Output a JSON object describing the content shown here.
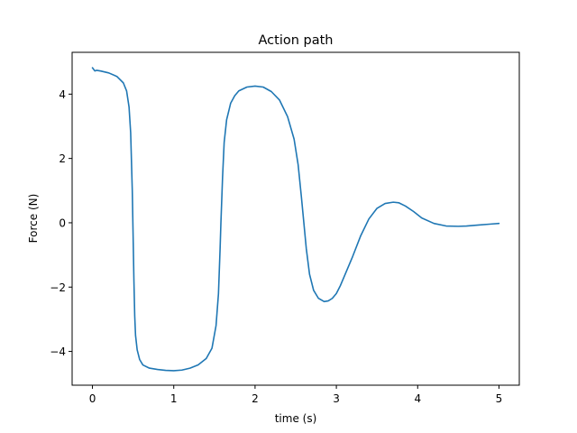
{
  "chart_data": {
    "type": "line",
    "title": "Action path",
    "xlabel": "time (s)",
    "ylabel": "Force (N)",
    "xlim": [
      -0.25,
      5.25
    ],
    "ylim": [
      -5.05,
      5.3
    ],
    "x_ticks": [
      0,
      1,
      2,
      3,
      4,
      5
    ],
    "y_ticks": [
      -4,
      -2,
      0,
      2,
      4
    ],
    "x_tick_labels": [
      "0",
      "1",
      "2",
      "3",
      "4",
      "5"
    ],
    "y_tick_labels": [
      "−4",
      "−2",
      "0",
      "2",
      "4"
    ],
    "grid": false,
    "series": [
      {
        "color": "#1f77b4",
        "x": [
          0.0,
          0.03,
          0.05,
          0.1,
          0.2,
          0.3,
          0.38,
          0.42,
          0.45,
          0.47,
          0.49,
          0.5,
          0.51,
          0.52,
          0.53,
          0.55,
          0.58,
          0.62,
          0.7,
          0.8,
          0.9,
          1.0,
          1.1,
          1.2,
          1.3,
          1.4,
          1.47,
          1.52,
          1.55,
          1.57,
          1.58,
          1.6,
          1.62,
          1.65,
          1.7,
          1.75,
          1.8,
          1.9,
          2.0,
          2.1,
          2.2,
          2.3,
          2.4,
          2.48,
          2.53,
          2.57,
          2.6,
          2.63,
          2.67,
          2.72,
          2.78,
          2.85,
          2.9,
          2.95,
          3.0,
          3.05,
          3.1,
          3.2,
          3.3,
          3.4,
          3.5,
          3.6,
          3.7,
          3.77,
          3.85,
          3.95,
          4.05,
          4.2,
          4.35,
          4.5,
          4.6,
          4.75,
          4.9,
          5.0
        ],
        "y": [
          4.82,
          4.72,
          4.74,
          4.72,
          4.66,
          4.55,
          4.35,
          4.1,
          3.6,
          2.8,
          1.0,
          -0.4,
          -1.8,
          -2.9,
          -3.5,
          -3.95,
          -4.25,
          -4.42,
          -4.52,
          -4.56,
          -4.59,
          -4.6,
          -4.58,
          -4.52,
          -4.42,
          -4.22,
          -3.9,
          -3.2,
          -2.2,
          -0.8,
          0.0,
          1.4,
          2.5,
          3.2,
          3.72,
          3.95,
          4.1,
          4.22,
          4.25,
          4.22,
          4.08,
          3.82,
          3.3,
          2.6,
          1.8,
          0.8,
          0.0,
          -0.8,
          -1.6,
          -2.1,
          -2.35,
          -2.45,
          -2.43,
          -2.35,
          -2.2,
          -1.95,
          -1.65,
          -1.05,
          -0.4,
          0.12,
          0.45,
          0.6,
          0.64,
          0.62,
          0.52,
          0.35,
          0.15,
          -0.02,
          -0.1,
          -0.11,
          -0.1,
          -0.07,
          -0.04,
          -0.02
        ]
      }
    ]
  }
}
